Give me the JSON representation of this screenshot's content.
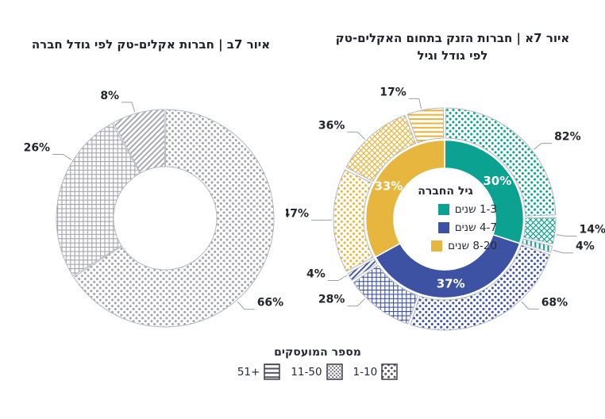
{
  "page": {
    "background": "#ffffff"
  },
  "colors": {
    "teal": "#0ba291",
    "blue": "#3e52a3",
    "yellow": "#e6b63e",
    "gray": "#a4a4ac",
    "label_text": "#23242c",
    "leader_line": "#9a9ea8",
    "segment_outline": "#b4b8c2",
    "legend_pattern_dark": "#55555d",
    "title_text": "#20222e"
  },
  "chart_data": [
    {
      "id": "startups-by-size-and-age",
      "type": "donut-nested",
      "title_lines": [
        "איור 7א | חברות הזנק בתחום האקלים-טק",
        "לפי גודל וגיל"
      ],
      "center_legend": {
        "title": "גיל החברה",
        "items": [
          {
            "label": "1-3 שנים",
            "color_key": "teal"
          },
          {
            "label": "4-7 שנים",
            "color_key": "blue"
          },
          {
            "label": "8-20 שנים",
            "color_key": "yellow"
          }
        ]
      },
      "groups": [
        {
          "age": "1-3 שנים",
          "label": "30%",
          "value": 30,
          "color_key": "teal",
          "breakdown": [
            {
              "employees": "1-10",
              "label": "82%",
              "value": 82,
              "pattern": "dots",
              "label_angle": 52
            },
            {
              "employees": "11-50",
              "label": "14%",
              "value": 14,
              "pattern": "diag",
              "label_angle": 98
            },
            {
              "employees": "51+",
              "label": "4%",
              "value": 4,
              "pattern": "lines-v",
              "label_angle": 106
            }
          ]
        },
        {
          "age": "4-7 שנים",
          "label": "37%",
          "value": 37,
          "color_key": "blue",
          "breakdown": [
            {
              "employees": "1-10",
              "label": "68%",
              "value": 68,
              "pattern": "dots",
              "label_angle": 137
            },
            {
              "employees": "11-50",
              "label": "28%",
              "value": 28,
              "pattern": "grid",
              "label_angle": 225
            },
            {
              "employees": "51+",
              "label": "4%",
              "value": 4,
              "pattern": "lines-d",
              "label_angle": 240
            }
          ]
        },
        {
          "age": "8-20 שנים",
          "label": "33%",
          "value": 33,
          "color_key": "yellow",
          "breakdown": [
            {
              "employees": "1-10",
              "label": "47%",
              "value": 47,
              "pattern": "dots",
              "label_angle": 269.5
            },
            {
              "employees": "11-50",
              "label": "36%",
              "value": 36,
              "pattern": "diag",
              "label_angle": 315
            },
            {
              "employees": "51+",
              "label": "17%",
              "value": 17,
              "pattern": "lines-h",
              "label_angle": 348
            }
          ]
        }
      ]
    },
    {
      "id": "climate-tech-by-size",
      "type": "donut",
      "title": "איור 7ב | חברות אקלים-טק לפי גודל חברה",
      "color_key": "gray",
      "segments": [
        {
          "employees": "1-10",
          "label": "66%",
          "value": 66,
          "pattern": "dots",
          "label_angle": 139
        },
        {
          "employees": "11-50",
          "label": "26%",
          "value": 26,
          "pattern": "grid",
          "label_angle": 302
        },
        {
          "employees": "51+",
          "label": "8%",
          "value": 8,
          "pattern": "lines-d",
          "label_angle": 344
        }
      ]
    }
  ],
  "employee_legend": {
    "title": "מספר המועסקים",
    "items": [
      {
        "label": "51+",
        "pattern": "lines-h"
      },
      {
        "label": "11-50",
        "pattern": "dots-dense"
      },
      {
        "label": "1-10",
        "pattern": "dots"
      }
    ]
  }
}
